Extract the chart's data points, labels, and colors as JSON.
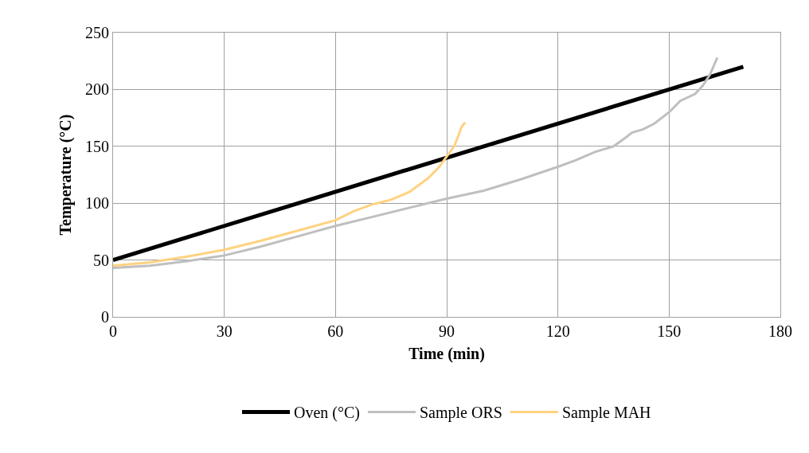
{
  "chart_data": {
    "type": "line",
    "xlabel": "Time (min)",
    "ylabel": "Temperature (°C)",
    "xlim": [
      0,
      180
    ],
    "xticks": [
      0,
      30,
      60,
      90,
      120,
      150,
      180
    ],
    "ylim": [
      0,
      250
    ],
    "yticks": [
      0,
      50,
      100,
      150,
      200,
      250
    ],
    "grid": true,
    "legend": "bottom",
    "marker": "none",
    "line_style": "solid",
    "series": [
      {
        "name": "Oven (°C)",
        "color": "#000000",
        "x": [
          0,
          170
        ],
        "values": [
          50,
          220
        ]
      },
      {
        "name": "Sample ORS",
        "color": "#bfbfbf",
        "x": [
          0,
          10,
          20,
          30,
          40,
          50,
          60,
          70,
          80,
          90,
          100,
          110,
          120,
          125,
          130,
          135,
          138,
          140,
          143,
          146,
          150,
          153,
          157,
          159,
          161,
          163
        ],
        "values": [
          43,
          45,
          49,
          54,
          62,
          71,
          80,
          88,
          96,
          104,
          111,
          121,
          132,
          138,
          145,
          150,
          157,
          162,
          165,
          170,
          180,
          190,
          196,
          203,
          213,
          228
        ]
      },
      {
        "name": "Sample MAH",
        "color": "#ffd280",
        "x": [
          0,
          10,
          20,
          30,
          40,
          50,
          60,
          65,
          70,
          75,
          80,
          85,
          88,
          90,
          92,
          93,
          94,
          95
        ],
        "values": [
          45,
          48,
          53,
          59,
          67,
          76,
          85,
          93,
          99,
          103,
          110,
          122,
          132,
          141,
          150,
          158,
          167,
          171
        ]
      }
    ]
  }
}
